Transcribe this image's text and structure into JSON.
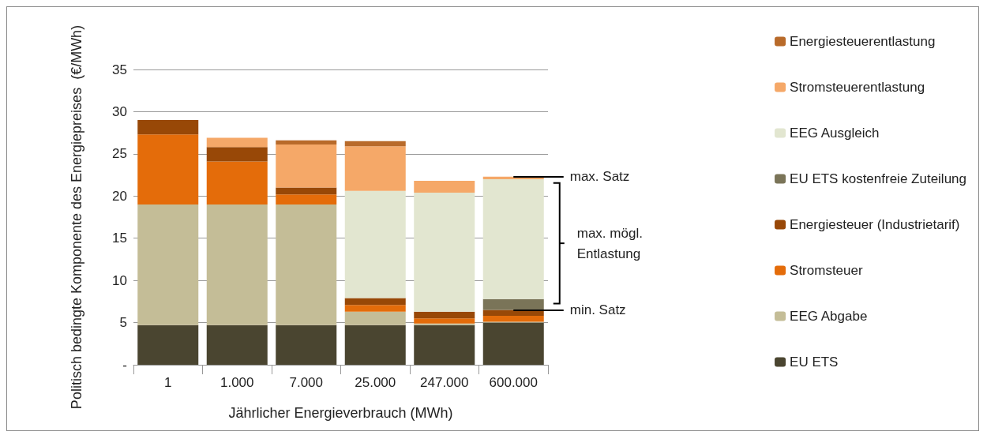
{
  "chart_data": {
    "type": "bar",
    "stacked": true,
    "xlabel": "Jährlicher Energieverbrauch (MWh)",
    "ylabel": "Politisch bedingte Komponente des Energiepreises  (€/MWh)",
    "categories": [
      "1",
      "1.000",
      "7.000",
      "25.000",
      "247.000",
      "600.000"
    ],
    "ylim": [
      0,
      35
    ],
    "yticks": [
      {
        "value": 0,
        "label": "-"
      },
      5,
      10,
      15,
      20,
      25,
      30,
      35
    ],
    "grid": "y",
    "legend": "right",
    "series": [
      {
        "name": "EU ETS",
        "color": "#4a4530",
        "values": [
          4.7,
          4.7,
          4.7,
          4.7,
          4.7,
          5.0
        ]
      },
      {
        "name": "EEG Abgabe",
        "color": "#c4bd97",
        "values": [
          14.3,
          14.3,
          14.3,
          1.6,
          0.2,
          0.1
        ]
      },
      {
        "name": "Stromsteuer",
        "color": "#e46c0a",
        "values": [
          8.3,
          5.1,
          1.2,
          0.8,
          0.6,
          0.7
        ]
      },
      {
        "name": "Energiesteuer (Industrietarif)",
        "color": "#984807",
        "values": [
          1.7,
          1.7,
          0.8,
          0.8,
          0.8,
          0.7
        ]
      },
      {
        "name": "EU ETS kostenfreie Zuteilung",
        "color": "#7a7458",
        "values": [
          null,
          null,
          null,
          null,
          null,
          1.3
        ]
      },
      {
        "name": "EEG Ausgleich",
        "color": "#e2e6d0",
        "values": [
          null,
          null,
          null,
          12.7,
          14.1,
          14.2
        ]
      },
      {
        "name": "Stromsteuerentlastung",
        "color": "#f5a868",
        "values": [
          null,
          1.1,
          5.1,
          5.3,
          1.4,
          0.3
        ]
      },
      {
        "name": "Energiesteuerentlastung",
        "color": "#b86a2a",
        "values": [
          null,
          null,
          0.5,
          0.6,
          null,
          null
        ]
      }
    ],
    "annotations": [
      {
        "text": "max. Satz",
        "x": "600.000",
        "y": 22.3
      },
      "max. mögl. Entlastung",
      {
        "text": "min. Satz",
        "x": "600.000",
        "y": 6.5
      }
    ]
  }
}
